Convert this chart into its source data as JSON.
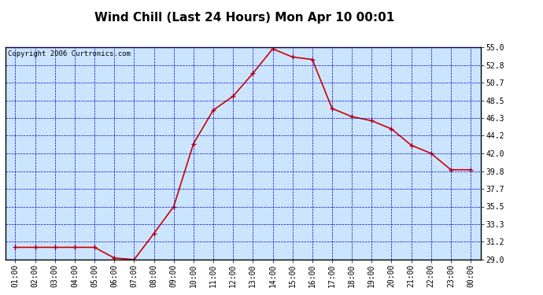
{
  "title": "Wind Chill (Last 24 Hours) Mon Apr 10 00:01",
  "copyright": "Copyright 2006 Curtronics.com",
  "x_labels": [
    "01:00",
    "02:00",
    "03:00",
    "04:00",
    "05:00",
    "06:00",
    "07:00",
    "08:00",
    "09:00",
    "10:00",
    "11:00",
    "12:00",
    "13:00",
    "14:00",
    "15:00",
    "16:00",
    "17:00",
    "18:00",
    "19:00",
    "20:00",
    "21:00",
    "22:00",
    "23:00",
    "00:00"
  ],
  "y_values": [
    30.5,
    30.5,
    30.5,
    30.5,
    30.5,
    29.2,
    29.0,
    32.2,
    35.5,
    43.2,
    47.3,
    49.0,
    51.8,
    54.8,
    53.8,
    53.5,
    47.5,
    46.5,
    46.0,
    45.0,
    43.0,
    42.0,
    40.0,
    40.0
  ],
  "ylim_min": 29.0,
  "ylim_max": 55.0,
  "yticks": [
    29.0,
    31.2,
    33.3,
    35.5,
    37.7,
    39.8,
    42.0,
    44.2,
    46.3,
    48.5,
    50.7,
    52.8,
    55.0
  ],
  "line_color": "#cc0000",
  "marker_color": "#cc0000",
  "bg_color": "#cce5ff",
  "grid_color": "#0000cc",
  "title_fontsize": 11,
  "tick_fontsize": 7,
  "copyright_fontsize": 6.5
}
